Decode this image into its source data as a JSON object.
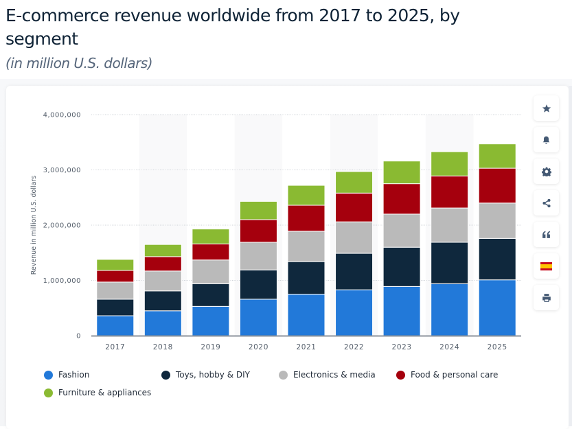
{
  "header": {
    "title": "E-commerce revenue worldwide from 2017 to 2025, by segment",
    "subtitle": "(in million U.S. dollars)"
  },
  "toolbar": {
    "buttons": [
      {
        "name": "favorite",
        "icon": "star-icon"
      },
      {
        "name": "notification",
        "icon": "bell-icon"
      },
      {
        "name": "settings",
        "icon": "gear-icon"
      },
      {
        "name": "share",
        "icon": "share-icon"
      },
      {
        "name": "cite",
        "icon": "quote-icon"
      },
      {
        "name": "language",
        "icon": "spain-flag-icon"
      },
      {
        "name": "print",
        "icon": "printer-icon"
      }
    ]
  },
  "colors": {
    "Fashion": "#2279d9",
    "Toys, hobby & DIY": "#0f283d",
    "Electronics & media": "#bababa",
    "Food & personal care": "#a5000d",
    "Furniture & appliances": "#8aba32"
  },
  "chart_data": {
    "type": "bar",
    "stacked": true,
    "title": "E-commerce revenue worldwide from 2017 to 2025, by segment",
    "subtitle": "(in million U.S. dollars)",
    "xlabel": "",
    "ylabel": "Revenue in million U.S. dollars",
    "ylim": [
      0,
      4000000
    ],
    "yticks": [
      0,
      1000000,
      2000000,
      3000000,
      4000000
    ],
    "ytick_labels": [
      "0",
      "1,000,000",
      "2,000,000",
      "3,000,000",
      "4,000,000"
    ],
    "grid": true,
    "legend_position": "bottom",
    "categories": [
      "2017",
      "2018",
      "2019",
      "2020",
      "2021",
      "2022",
      "2023",
      "2024",
      "2025"
    ],
    "series": [
      {
        "name": "Fashion",
        "values": [
          360000,
          450000,
          530000,
          660000,
          750000,
          830000,
          890000,
          940000,
          1010000
        ]
      },
      {
        "name": "Toys, hobby & DIY",
        "values": [
          300000,
          360000,
          410000,
          530000,
          590000,
          660000,
          710000,
          750000,
          750000
        ]
      },
      {
        "name": "Electronics & media",
        "values": [
          310000,
          360000,
          430000,
          500000,
          550000,
          570000,
          600000,
          620000,
          640000
        ]
      },
      {
        "name": "Food & personal care",
        "values": [
          210000,
          260000,
          290000,
          410000,
          470000,
          520000,
          550000,
          580000,
          630000
        ]
      },
      {
        "name": "Furniture & appliances",
        "values": [
          200000,
          220000,
          270000,
          330000,
          360000,
          390000,
          410000,
          440000,
          440000
        ]
      }
    ]
  }
}
